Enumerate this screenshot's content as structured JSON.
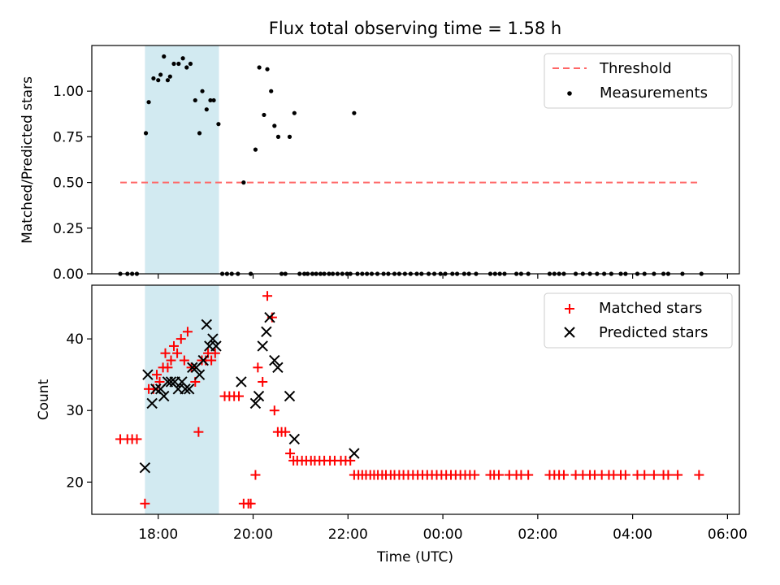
{
  "figure": {
    "title": "Flux total observing time = 1.58 h",
    "xlabel": "Time (UTC)",
    "xtick_labels": [
      "18:00",
      "20:00",
      "22:00",
      "00:00",
      "02:00",
      "04:00",
      "06:00"
    ],
    "shaded_band": {
      "x_start_hours": 17.72,
      "x_end_hours": 19.28
    },
    "colors": {
      "shade": "#add8e6",
      "threshold": "#ff6666",
      "matched": "#ff0000",
      "predicted": "#000000",
      "measurement": "#000000"
    }
  },
  "chart_data": [
    {
      "type": "scatter",
      "ylabel": "Matched/Predicted stars",
      "xunit": "hours since 00:00 UTC of first day",
      "xlim": [
        16.6,
        30.25
      ],
      "ylim": [
        0,
        1.25
      ],
      "yticks": [
        "0.00",
        "0.25",
        "0.50",
        "0.75",
        "1.00"
      ],
      "legend": {
        "position": "top-right",
        "threshold": "Threshold",
        "measurements": "Measurements"
      },
      "threshold": {
        "y": 0.5,
        "x_range": [
          17.2,
          29.4
        ]
      },
      "series": [
        {
          "name": "Measurements",
          "points": [
            [
              17.74,
              0.77
            ],
            [
              17.8,
              0.94
            ],
            [
              17.9,
              1.07
            ],
            [
              18.0,
              1.06
            ],
            [
              18.05,
              1.09
            ],
            [
              18.12,
              1.19
            ],
            [
              18.2,
              1.06
            ],
            [
              18.25,
              1.08
            ],
            [
              18.33,
              1.15
            ],
            [
              18.43,
              1.15
            ],
            [
              18.52,
              1.18
            ],
            [
              18.6,
              1.13
            ],
            [
              18.68,
              1.15
            ],
            [
              18.78,
              0.95
            ],
            [
              18.87,
              0.77
            ],
            [
              18.93,
              1.0
            ],
            [
              19.02,
              0.9
            ],
            [
              19.1,
              0.95
            ],
            [
              19.17,
              0.95
            ],
            [
              19.27,
              0.82
            ],
            [
              19.8,
              0.5
            ],
            [
              20.05,
              0.68
            ],
            [
              20.13,
              1.13
            ],
            [
              20.23,
              0.87
            ],
            [
              20.3,
              1.12
            ],
            [
              20.38,
              1.0
            ],
            [
              20.45,
              0.81
            ],
            [
              20.53,
              0.75
            ],
            [
              20.77,
              0.75
            ],
            [
              20.87,
              0.88
            ],
            [
              22.13,
              0.88
            ],
            [
              17.2,
              0
            ],
            [
              17.35,
              0
            ],
            [
              17.45,
              0
            ],
            [
              17.55,
              0
            ],
            [
              19.35,
              0
            ],
            [
              19.45,
              0
            ],
            [
              19.55,
              0
            ],
            [
              19.68,
              0
            ],
            [
              19.95,
              0
            ],
            [
              20.6,
              0
            ],
            [
              20.68,
              0
            ],
            [
              20.98,
              0
            ],
            [
              21.08,
              0
            ],
            [
              21.15,
              0
            ],
            [
              21.25,
              0
            ],
            [
              21.33,
              0
            ],
            [
              21.42,
              0
            ],
            [
              21.5,
              0
            ],
            [
              21.6,
              0
            ],
            [
              21.68,
              0
            ],
            [
              21.78,
              0
            ],
            [
              21.88,
              0
            ],
            [
              21.98,
              0
            ],
            [
              22.05,
              0
            ],
            [
              22.2,
              0
            ],
            [
              22.3,
              0
            ],
            [
              22.4,
              0
            ],
            [
              22.5,
              0
            ],
            [
              22.62,
              0
            ],
            [
              22.75,
              0
            ],
            [
              22.85,
              0
            ],
            [
              22.98,
              0
            ],
            [
              23.08,
              0
            ],
            [
              23.2,
              0
            ],
            [
              23.32,
              0
            ],
            [
              23.45,
              0
            ],
            [
              23.55,
              0
            ],
            [
              23.7,
              0
            ],
            [
              23.82,
              0
            ],
            [
              23.95,
              0
            ],
            [
              24.05,
              0
            ],
            [
              24.2,
              0
            ],
            [
              24.3,
              0
            ],
            [
              24.45,
              0
            ],
            [
              24.55,
              0
            ],
            [
              24.7,
              0
            ],
            [
              25.0,
              0
            ],
            [
              25.1,
              0
            ],
            [
              25.2,
              0
            ],
            [
              25.3,
              0
            ],
            [
              25.55,
              0
            ],
            [
              25.65,
              0
            ],
            [
              25.8,
              0
            ],
            [
              26.25,
              0
            ],
            [
              26.35,
              0
            ],
            [
              26.45,
              0
            ],
            [
              26.55,
              0
            ],
            [
              26.8,
              0
            ],
            [
              26.95,
              0
            ],
            [
              27.1,
              0
            ],
            [
              27.25,
              0
            ],
            [
              27.4,
              0
            ],
            [
              27.55,
              0
            ],
            [
              27.75,
              0
            ],
            [
              27.85,
              0
            ],
            [
              28.1,
              0
            ],
            [
              28.25,
              0
            ],
            [
              28.45,
              0
            ],
            [
              28.65,
              0
            ],
            [
              28.75,
              0
            ],
            [
              29.05,
              0
            ],
            [
              29.45,
              0
            ]
          ]
        }
      ]
    },
    {
      "type": "scatter",
      "ylabel": "Count",
      "xlabel": "Time (UTC)",
      "xunit": "hours since 00:00 UTC of first day",
      "xlim": [
        16.6,
        30.25
      ],
      "ylim": [
        15.5,
        47.5
      ],
      "yticks": [
        "20",
        "30",
        "40"
      ],
      "legend": {
        "position": "top-right",
        "matched": "Matched stars",
        "predicted": "Predicted stars"
      },
      "series": [
        {
          "name": "Matched stars",
          "marker": "+",
          "points": [
            [
              17.2,
              26
            ],
            [
              17.35,
              26
            ],
            [
              17.45,
              26
            ],
            [
              17.55,
              26
            ],
            [
              17.72,
              17
            ],
            [
              17.8,
              33
            ],
            [
              17.9,
              33
            ],
            [
              17.97,
              35
            ],
            [
              18.03,
              34
            ],
            [
              18.1,
              36
            ],
            [
              18.15,
              38
            ],
            [
              18.2,
              36
            ],
            [
              18.27,
              37
            ],
            [
              18.33,
              39
            ],
            [
              18.4,
              38
            ],
            [
              18.48,
              40
            ],
            [
              18.55,
              37
            ],
            [
              18.62,
              41
            ],
            [
              18.7,
              36
            ],
            [
              18.78,
              34
            ],
            [
              18.85,
              27
            ],
            [
              18.92,
              37
            ],
            [
              19.0,
              37
            ],
            [
              19.05,
              38
            ],
            [
              19.12,
              37
            ],
            [
              19.2,
              38
            ],
            [
              19.4,
              32
            ],
            [
              19.5,
              32
            ],
            [
              19.6,
              32
            ],
            [
              19.7,
              32
            ],
            [
              19.8,
              17
            ],
            [
              19.9,
              17
            ],
            [
              19.95,
              17
            ],
            [
              20.05,
              21
            ],
            [
              20.1,
              36
            ],
            [
              20.2,
              34
            ],
            [
              20.3,
              46
            ],
            [
              20.4,
              43
            ],
            [
              20.45,
              30
            ],
            [
              20.52,
              27
            ],
            [
              20.6,
              27
            ],
            [
              20.68,
              27
            ],
            [
              20.78,
              24
            ],
            [
              20.85,
              23
            ],
            [
              20.93,
              23
            ],
            [
              21.03,
              23
            ],
            [
              21.12,
              23
            ],
            [
              21.22,
              23
            ],
            [
              21.3,
              23
            ],
            [
              21.4,
              23
            ],
            [
              21.5,
              23
            ],
            [
              21.62,
              23
            ],
            [
              21.72,
              23
            ],
            [
              21.85,
              23
            ],
            [
              21.95,
              23
            ],
            [
              22.05,
              23
            ],
            [
              22.13,
              21
            ],
            [
              22.22,
              21
            ],
            [
              22.3,
              21
            ],
            [
              22.38,
              21
            ],
            [
              22.47,
              21
            ],
            [
              22.55,
              21
            ],
            [
              22.63,
              21
            ],
            [
              22.72,
              21
            ],
            [
              22.8,
              21
            ],
            [
              22.9,
              21
            ],
            [
              22.98,
              21
            ],
            [
              23.08,
              21
            ],
            [
              23.17,
              21
            ],
            [
              23.27,
              21
            ],
            [
              23.37,
              21
            ],
            [
              23.47,
              21
            ],
            [
              23.57,
              21
            ],
            [
              23.67,
              21
            ],
            [
              23.77,
              21
            ],
            [
              23.87,
              21
            ],
            [
              23.97,
              21
            ],
            [
              24.07,
              21
            ],
            [
              24.17,
              21
            ],
            [
              24.27,
              21
            ],
            [
              24.37,
              21
            ],
            [
              24.47,
              21
            ],
            [
              24.57,
              21
            ],
            [
              24.67,
              21
            ],
            [
              25.0,
              21
            ],
            [
              25.08,
              21
            ],
            [
              25.18,
              21
            ],
            [
              25.4,
              21
            ],
            [
              25.55,
              21
            ],
            [
              25.65,
              21
            ],
            [
              25.8,
              21
            ],
            [
              26.25,
              21
            ],
            [
              26.35,
              21
            ],
            [
              26.45,
              21
            ],
            [
              26.55,
              21
            ],
            [
              26.8,
              21
            ],
            [
              26.95,
              21
            ],
            [
              27.1,
              21
            ],
            [
              27.2,
              21
            ],
            [
              27.35,
              21
            ],
            [
              27.5,
              21
            ],
            [
              27.6,
              21
            ],
            [
              27.75,
              21
            ],
            [
              27.85,
              21
            ],
            [
              28.1,
              21
            ],
            [
              28.25,
              21
            ],
            [
              28.45,
              21
            ],
            [
              28.65,
              21
            ],
            [
              28.75,
              21
            ],
            [
              28.95,
              21
            ],
            [
              29.4,
              21
            ]
          ]
        },
        {
          "name": "Predicted stars",
          "marker": "x",
          "points": [
            [
              17.72,
              22
            ],
            [
              17.78,
              35
            ],
            [
              17.87,
              31
            ],
            [
              17.95,
              33
            ],
            [
              18.05,
              33
            ],
            [
              18.12,
              32
            ],
            [
              18.2,
              34
            ],
            [
              18.27,
              34
            ],
            [
              18.35,
              34
            ],
            [
              18.42,
              33
            ],
            [
              18.5,
              34
            ],
            [
              18.57,
              33
            ],
            [
              18.65,
              33
            ],
            [
              18.72,
              36
            ],
            [
              18.8,
              36
            ],
            [
              18.87,
              35
            ],
            [
              18.95,
              37
            ],
            [
              19.02,
              42
            ],
            [
              19.08,
              39
            ],
            [
              19.15,
              40
            ],
            [
              19.22,
              39
            ],
            [
              19.75,
              34
            ],
            [
              20.05,
              31
            ],
            [
              20.12,
              32
            ],
            [
              20.2,
              39
            ],
            [
              20.28,
              41
            ],
            [
              20.35,
              43
            ],
            [
              20.45,
              37
            ],
            [
              20.52,
              36
            ],
            [
              20.77,
              32
            ],
            [
              20.87,
              26
            ],
            [
              22.13,
              24
            ]
          ]
        }
      ]
    }
  ]
}
